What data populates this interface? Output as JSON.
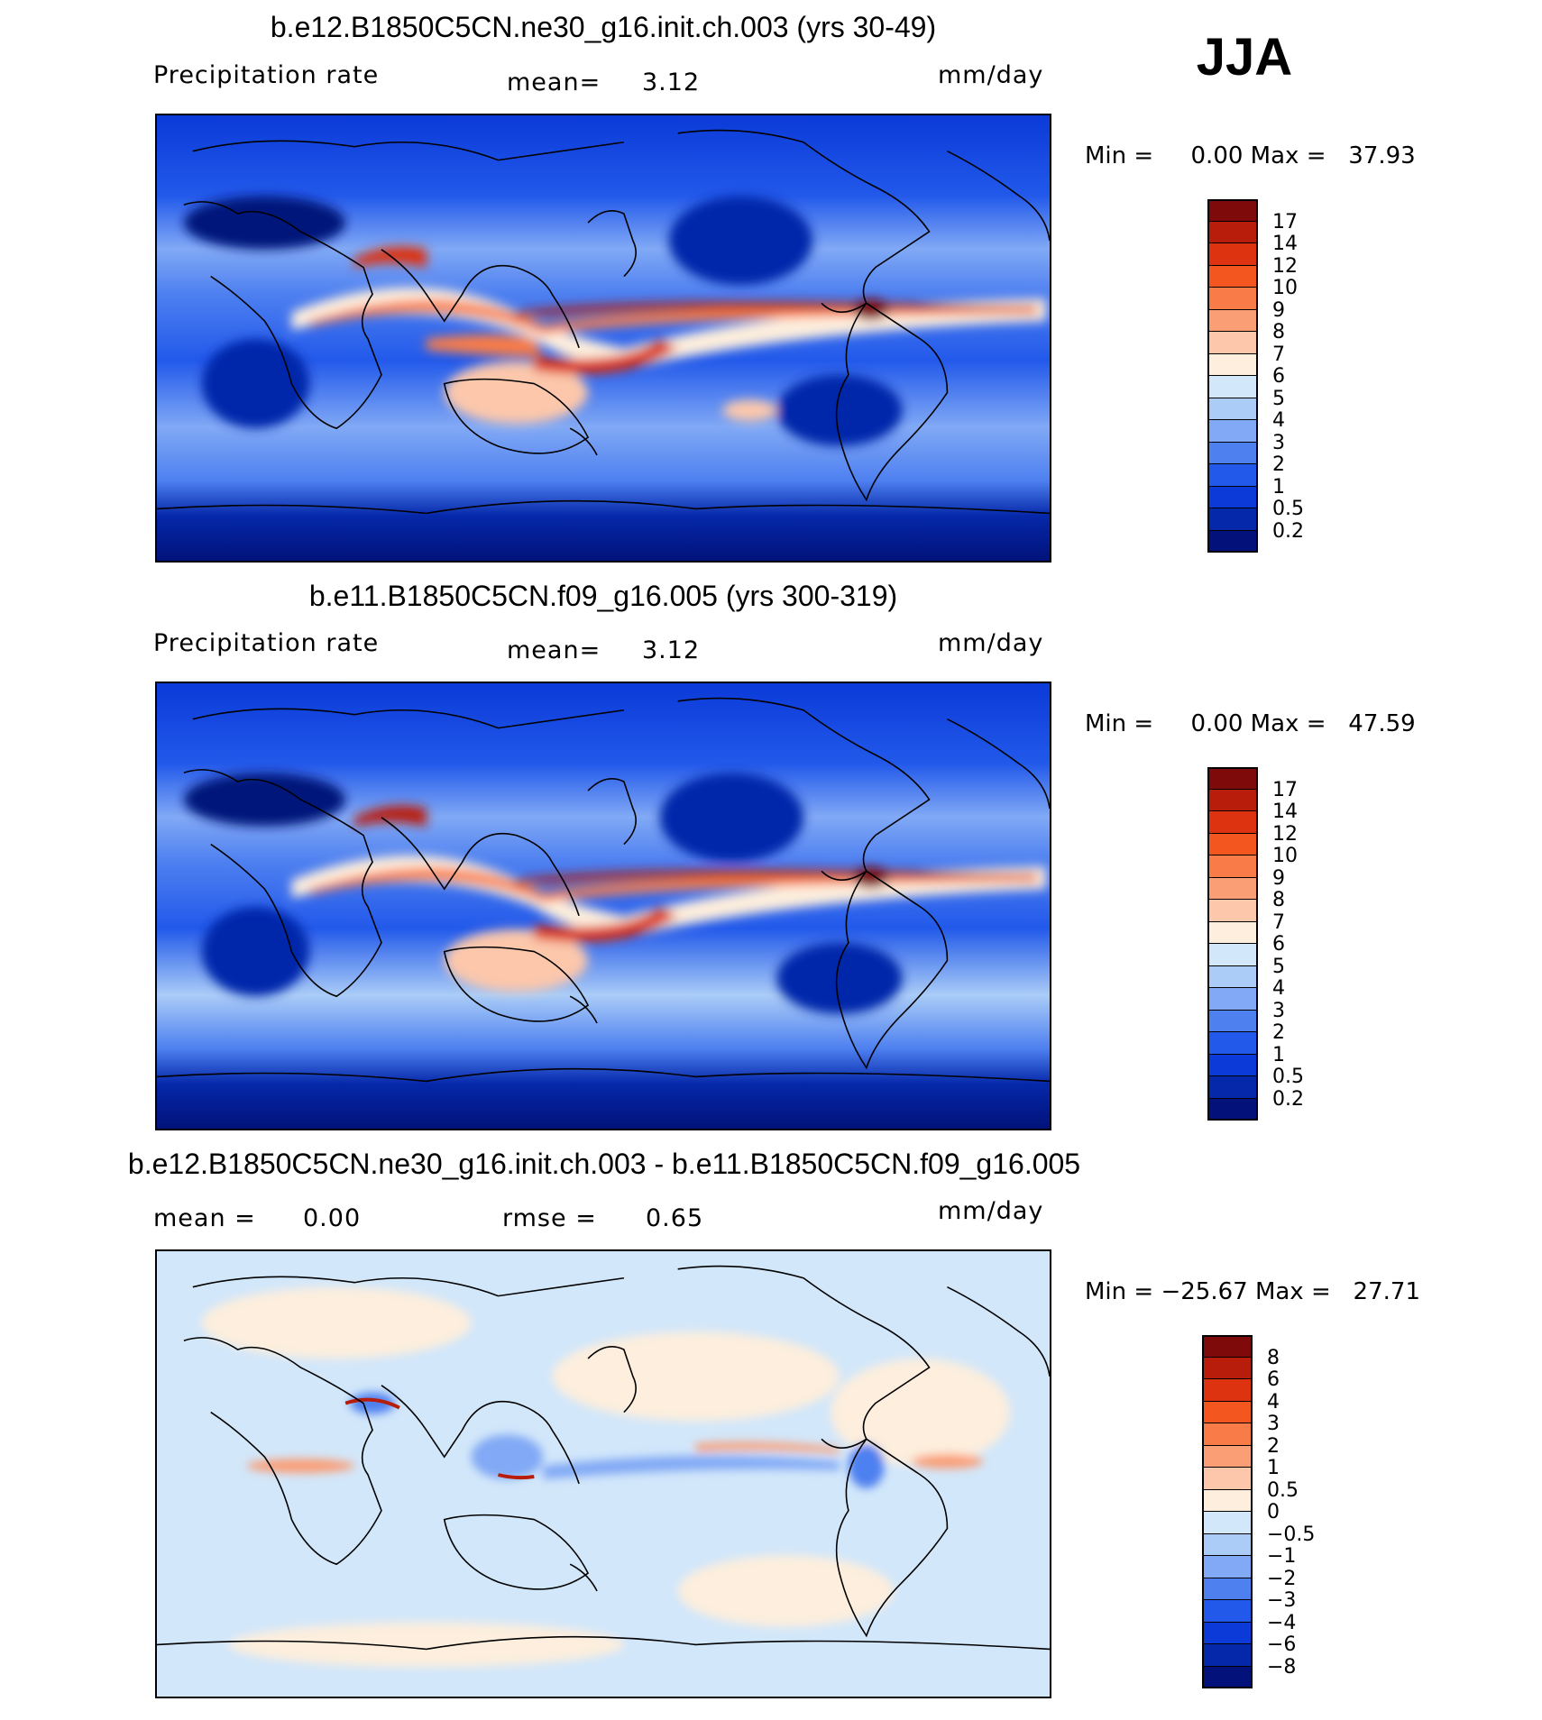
{
  "season": "JJA",
  "panels": [
    {
      "title": "b.e12.B1850C5CN.ne30_g16.init.ch.003 (yrs 30-49)",
      "variable": "Precipitation rate",
      "stat_label": "mean=",
      "stat_value": "3.12",
      "units": "mm/day",
      "min_label": "Min =",
      "min_value": "0.00",
      "max_label": "Max =",
      "max_value": "37.93"
    },
    {
      "title": "b.e11.B1850C5CN.f09_g16.005 (yrs 300-319)",
      "variable": "Precipitation rate",
      "stat_label": "mean=",
      "stat_value": "3.12",
      "units": "mm/day",
      "min_label": "Min =",
      "min_value": "0.00",
      "max_label": "Max =",
      "max_value": "47.59"
    },
    {
      "title": "b.e12.B1850C5CN.ne30_g16.init.ch.003 - b.e11.B1850C5CN.f09_g16.005",
      "mean_label": "mean =",
      "mean_value": "0.00",
      "rmse_label": "rmse =",
      "rmse_value": "0.65",
      "units": "mm/day",
      "min_label": "Min =",
      "min_value": "−25.67",
      "max_label": "Max =",
      "max_value": "27.71"
    }
  ],
  "colorbars": {
    "precip": {
      "labels": [
        "17",
        "14",
        "12",
        "10",
        "9",
        "8",
        "7",
        "6",
        "5",
        "4",
        "3",
        "2",
        "1",
        "0.5",
        "0.2"
      ],
      "colors": [
        "#7e0a0a",
        "#b81d0c",
        "#dd3311",
        "#f4561f",
        "#f97b47",
        "#fa9e76",
        "#fcc7ab",
        "#fdeedd",
        "#d2e7fa",
        "#aaccf7",
        "#81a9f5",
        "#4e80f0",
        "#2259ea",
        "#0b3ad8",
        "#0528aa",
        "#02127a"
      ]
    },
    "diff": {
      "labels": [
        "8",
        "6",
        "4",
        "3",
        "2",
        "1",
        "0.5",
        "0",
        "−0.5",
        "−1",
        "−2",
        "−3",
        "−4",
        "−6",
        "−8"
      ],
      "colors": [
        "#7e0a0a",
        "#b81d0c",
        "#dd3311",
        "#f4561f",
        "#f97b47",
        "#fa9e76",
        "#fcc7ab",
        "#fdeedd",
        "#d2e7fa",
        "#aaccf7",
        "#81a9f5",
        "#4e80f0",
        "#2259ea",
        "#0b3ad8",
        "#0528aa",
        "#02127a"
      ]
    }
  }
}
